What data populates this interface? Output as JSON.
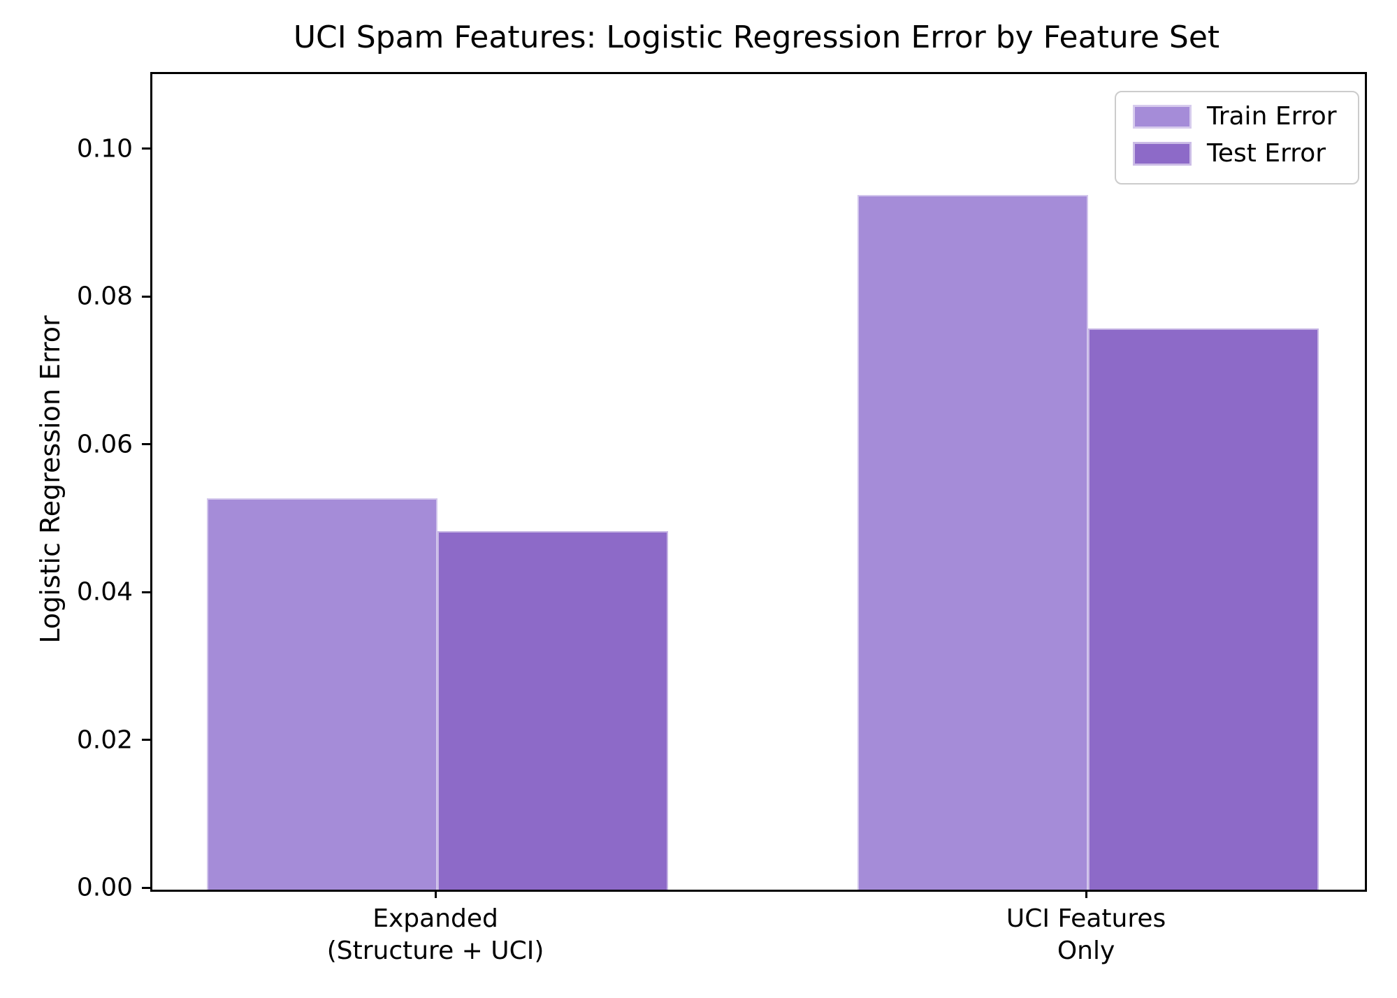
{
  "chart_data": {
    "type": "bar",
    "title": "UCI Spam Features: Logistic Regression Error by Feature Set",
    "xlabel": "",
    "ylabel": "Logistic Regression Error",
    "categories": [
      "Expanded\n(Structure + UCI)",
      "UCI Features\nOnly"
    ],
    "series": [
      {
        "name": "Train Error",
        "color": "#a58cd8",
        "values": [
          0.053,
          0.094
        ]
      },
      {
        "name": "Test Error",
        "color": "#8d6ac8",
        "values": [
          0.0485,
          0.076
        ]
      }
    ],
    "ylim": [
      0,
      0.1104
    ],
    "yticks": [
      0.0,
      0.02,
      0.04,
      0.06,
      0.08,
      0.1
    ],
    "ytick_labels": [
      "0.00",
      "0.02",
      "0.04",
      "0.06",
      "0.08",
      "0.10"
    ],
    "legend_position": "upper right",
    "grid": false,
    "background_color": "#ffffff",
    "spine_color": "#000000"
  }
}
